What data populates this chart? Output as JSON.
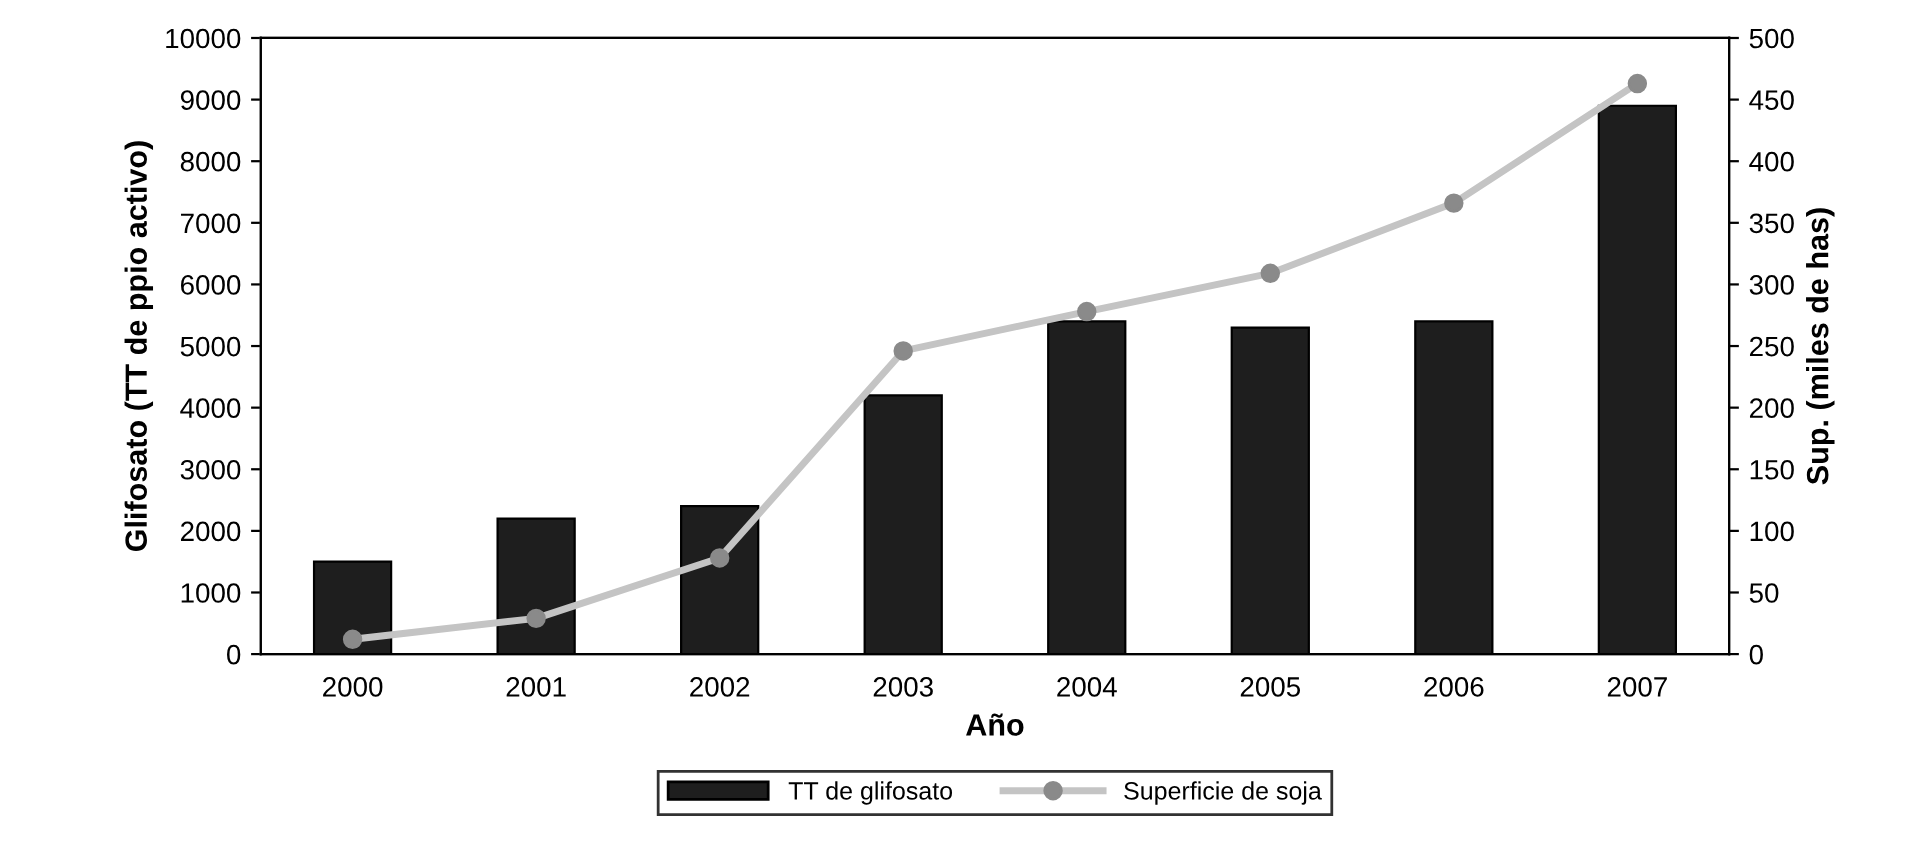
{
  "chart_data": {
    "type": "bar",
    "xlabel": "Año",
    "ylabel": "Glifosato (TT de ppio activo)",
    "y2label": "Sup. (miles de has)",
    "categories": [
      "2000",
      "2001",
      "2002",
      "2003",
      "2004",
      "2005",
      "2006",
      "2007"
    ],
    "series": [
      {
        "name": "TT de glifosato",
        "color": "#1e1e1e",
        "values": [
          1500,
          2200,
          2400,
          4200,
          5400,
          5300,
          5400,
          8900
        ]
      },
      {
        "name": "Superficie de soja",
        "type": "line",
        "axis": "y2",
        "color": "#c4c4c4",
        "marker": "circle",
        "values": [
          12,
          29,
          78,
          246,
          278,
          309,
          366,
          463
        ]
      }
    ],
    "ylim": [
      0,
      10000
    ],
    "yticks": [
      0,
      1000,
      2000,
      3000,
      4000,
      5000,
      6000,
      7000,
      8000,
      9000,
      10000
    ],
    "y2lim": [
      0,
      500
    ],
    "y2ticks": [
      0,
      50,
      100,
      150,
      200,
      250,
      300,
      350,
      400,
      450,
      500
    ],
    "grid": false,
    "legend": "bottom"
  }
}
